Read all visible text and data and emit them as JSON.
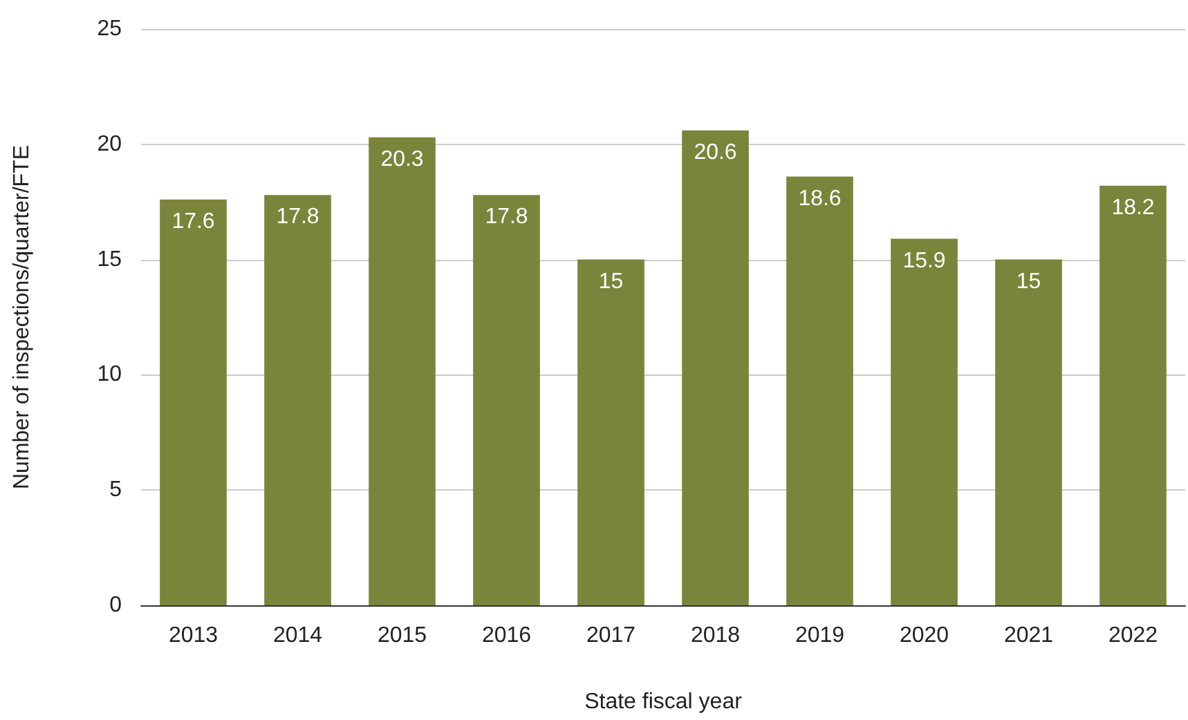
{
  "chart_data": {
    "type": "bar",
    "xlabel": "State fiscal year",
    "ylabel": "Number of inspections/quarter/FTE",
    "categories": [
      "2013",
      "2014",
      "2015",
      "2016",
      "2017",
      "2018",
      "2019",
      "2020",
      "2021",
      "2022"
    ],
    "values": [
      17.6,
      17.8,
      20.3,
      17.8,
      15,
      20.6,
      18.6,
      15.9,
      15,
      18.2
    ],
    "color": "#7a843b",
    "ylim": [
      0,
      25
    ],
    "yticks": [
      0,
      5,
      10,
      15,
      20,
      25
    ],
    "grid": "y",
    "data_labels": true
  }
}
